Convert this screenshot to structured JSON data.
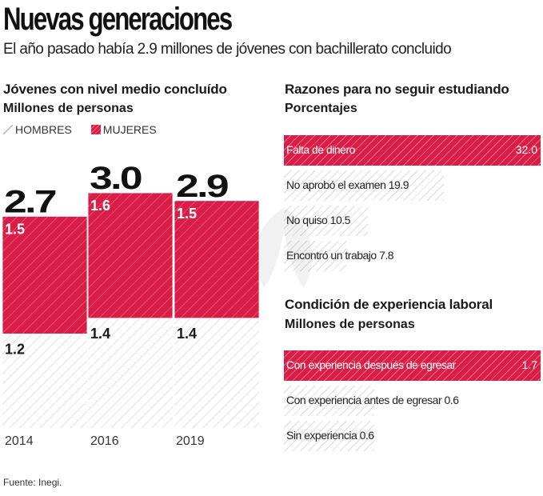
{
  "header": {
    "title": "Nuevas generaciones",
    "subtitle": "El año pasado había 2.9 millones de jóvenes con bachillerato concluido"
  },
  "colors": {
    "mujeres": "#d81e47",
    "hombres_hatch": "#c8c8c8",
    "text": "#1a1a1a"
  },
  "chart_data": [
    {
      "type": "bar",
      "stacked": true,
      "title": "Jóvenes con nivel medio concluído",
      "subtitle": "Millones de personas",
      "xlabel": "",
      "ylabel": "",
      "categories": [
        "2014",
        "2016",
        "2019"
      ],
      "series": [
        {
          "name": "HOMBRES",
          "values": [
            1.2,
            1.4,
            1.4
          ]
        },
        {
          "name": "MUJERES",
          "values": [
            1.5,
            1.6,
            1.5
          ]
        }
      ],
      "totals": [
        "2.7",
        "3.0",
        "2.9"
      ],
      "ylim": [
        0,
        3.0
      ],
      "legend": {
        "position": "top-left",
        "entries": [
          "HOMBRES",
          "MUJERES"
        ]
      },
      "grid": false
    },
    {
      "type": "bar",
      "orientation": "horizontal",
      "title": "Razones para no seguir estudiando",
      "subtitle": "Porcentajes",
      "categories": [
        "Falta de dinero",
        "No aprobó el examen",
        "No quiso",
        "Encontró un trabajo"
      ],
      "values": [
        32.0,
        19.9,
        10.5,
        7.8
      ],
      "labels": [
        "32.0",
        "19.9",
        "10.5",
        "7.8"
      ],
      "highlight": [
        true,
        false,
        false,
        false
      ],
      "xlim": [
        0,
        32.0
      ]
    },
    {
      "type": "bar",
      "orientation": "horizontal",
      "title": "Condición de experiencia laboral",
      "subtitle": "Millones de personas",
      "categories": [
        "Con experiencia después de egresar",
        "Con experiencia antes de egresar",
        "Sin experiencia"
      ],
      "values": [
        1.7,
        0.6,
        0.6
      ],
      "labels": [
        "1.7",
        "0.6",
        "0.6"
      ],
      "highlight": [
        true,
        false,
        false
      ],
      "xlim": [
        0,
        1.7
      ]
    }
  ],
  "footer": {
    "source": "Fuente: Inegi."
  }
}
